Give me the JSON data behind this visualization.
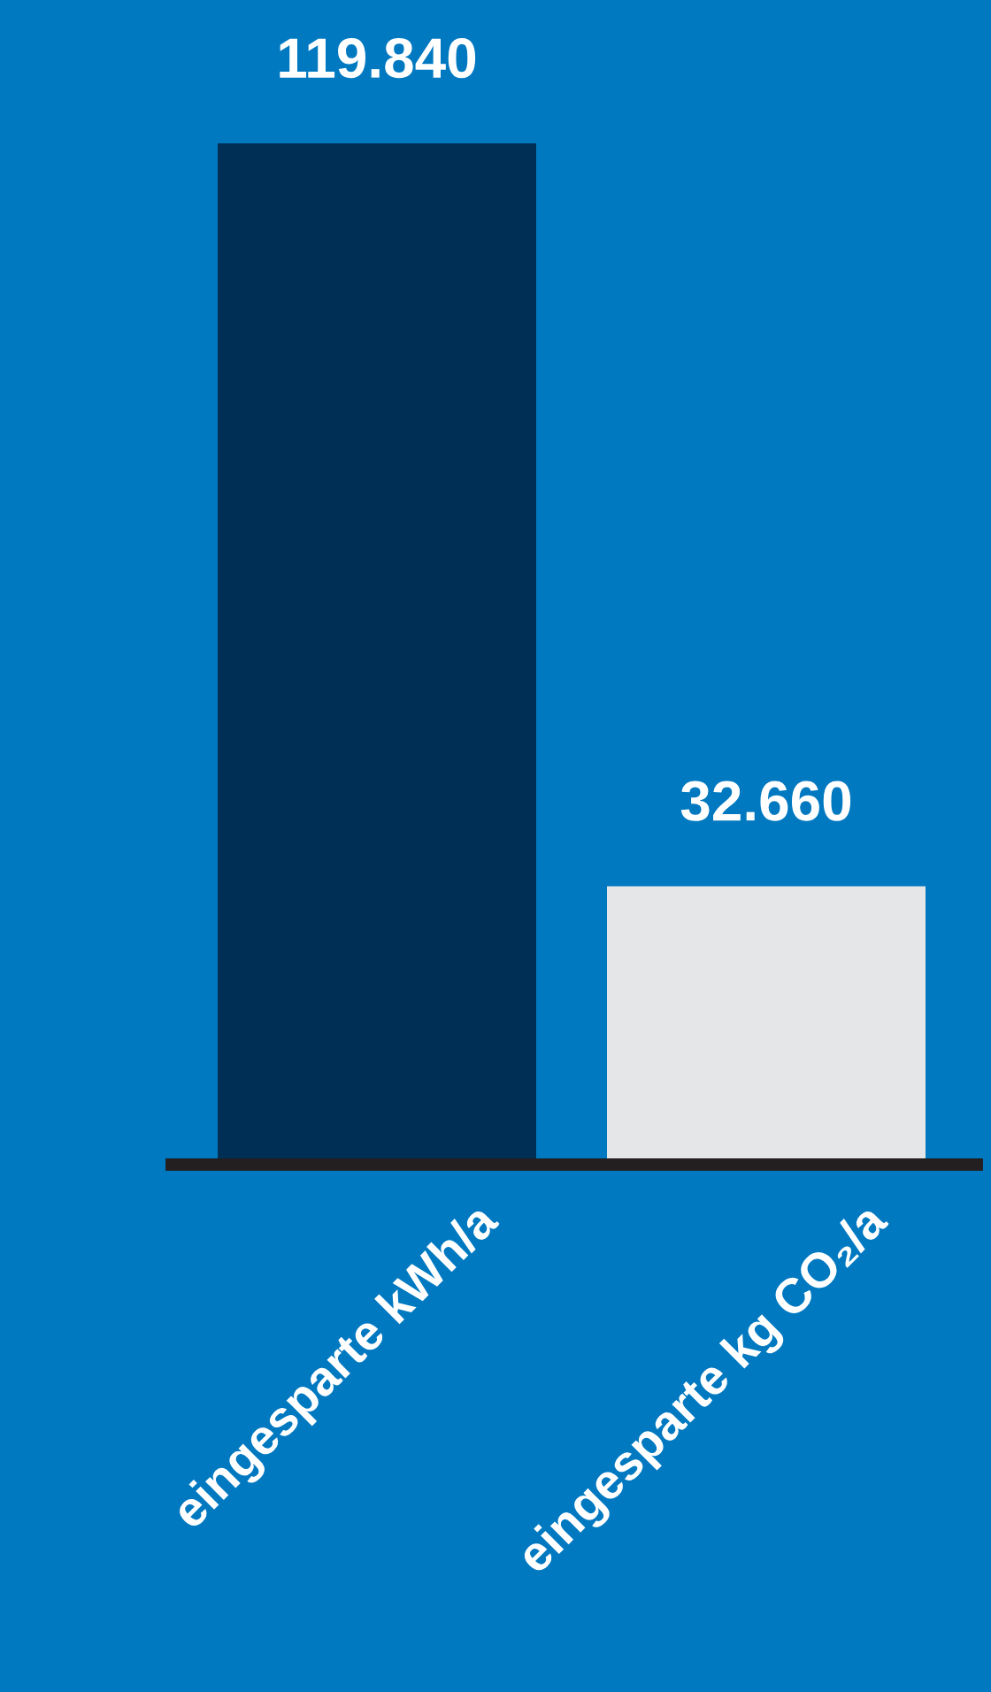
{
  "chart_data": {
    "type": "bar",
    "categories": [
      "eingesparte kWh/a",
      "eingesparte kg CO₂/a"
    ],
    "values": [
      119840,
      32660
    ],
    "value_labels": [
      "119.840",
      "32.660"
    ],
    "colors": [
      "#002f55",
      "#e5e6e7"
    ],
    "grid": false,
    "legend": false,
    "tick_labels": "x"
  }
}
